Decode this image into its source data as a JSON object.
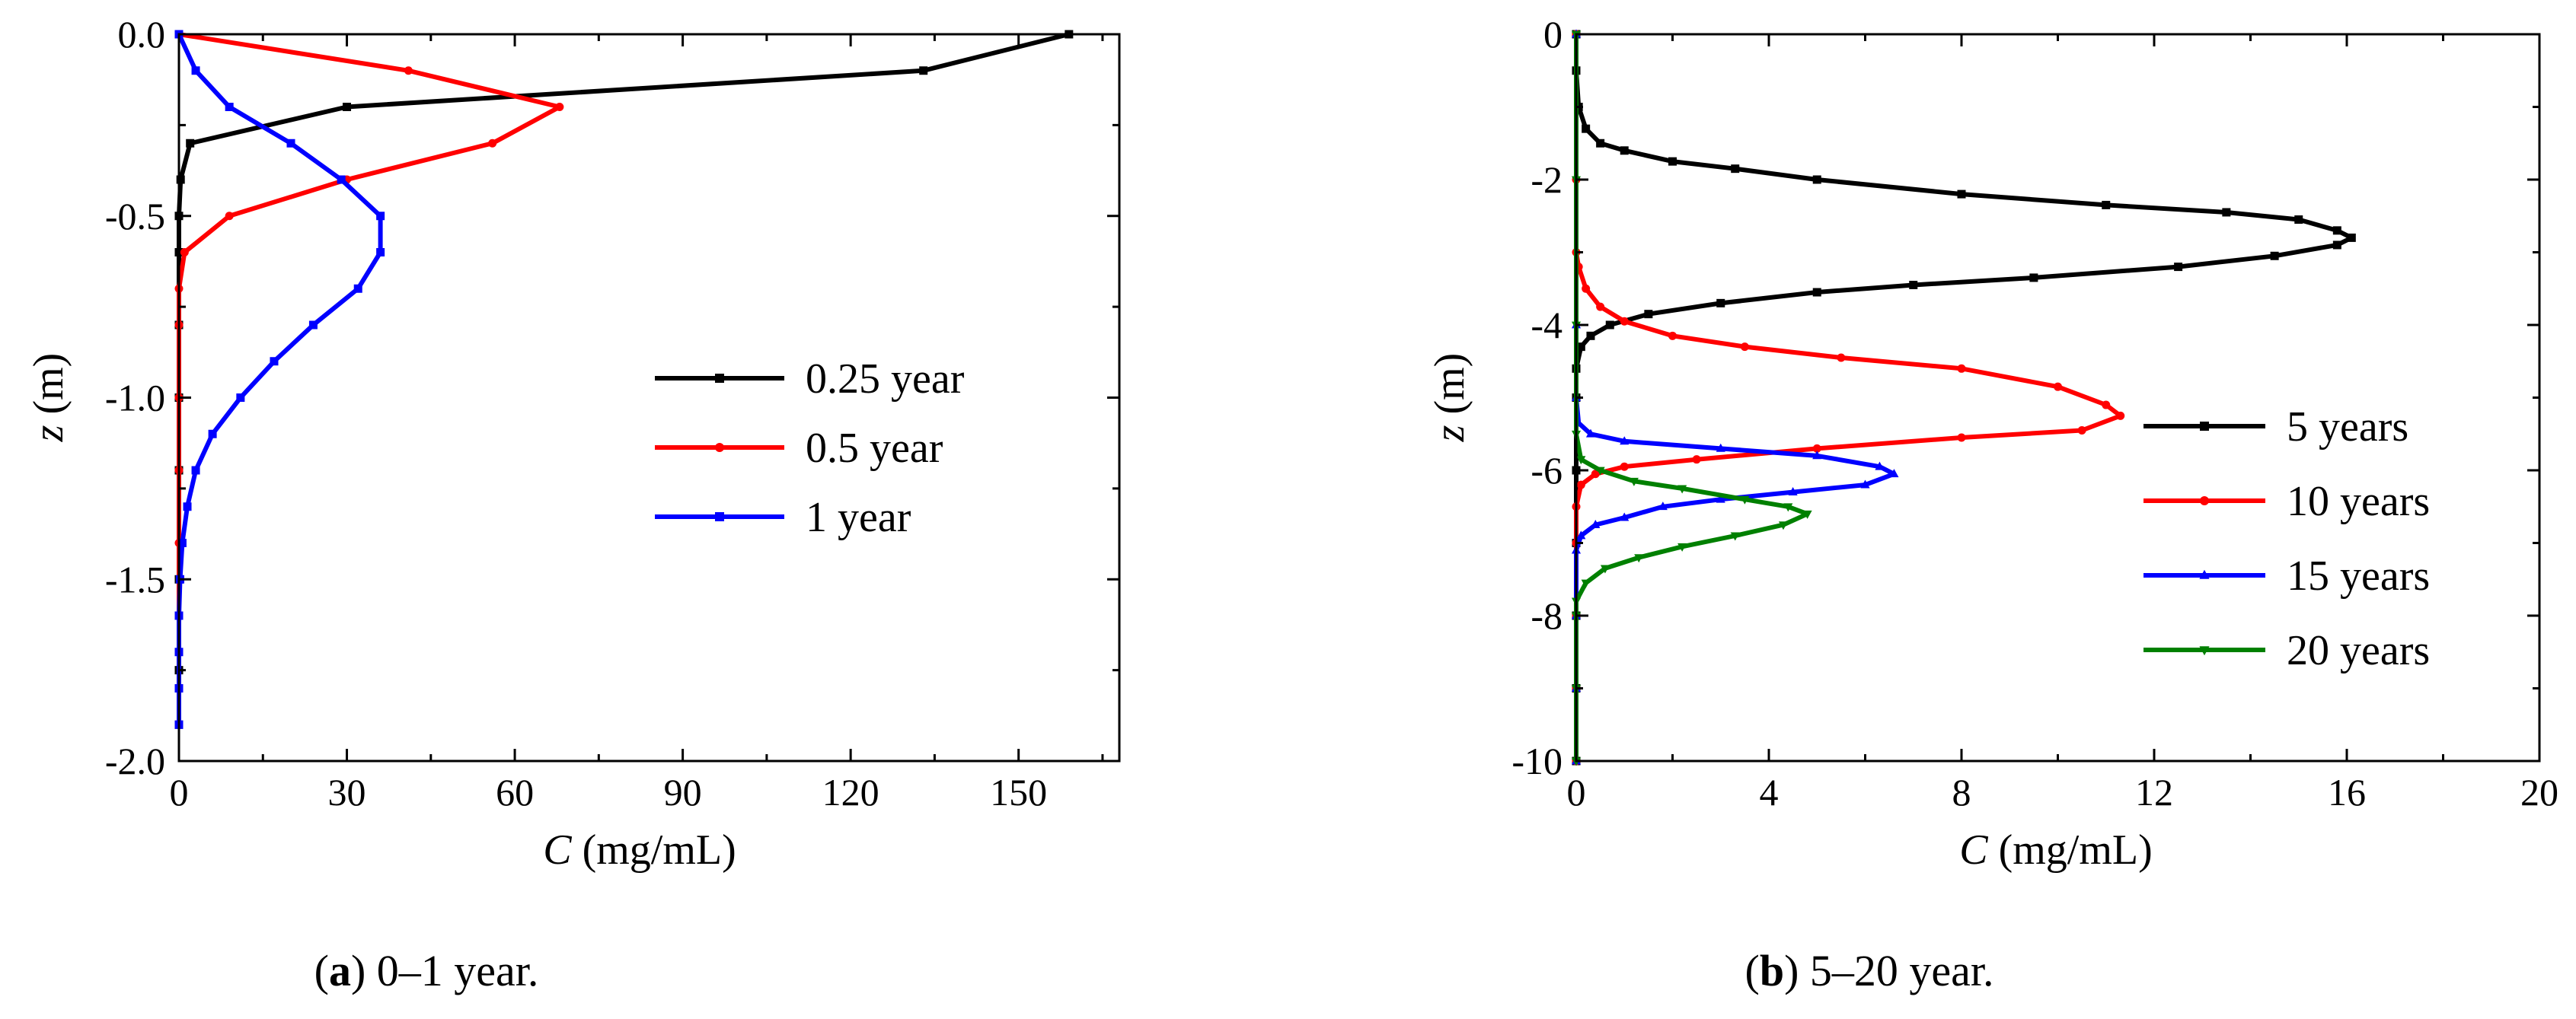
{
  "charts": [
    {
      "id": "a",
      "caption_letter": "a",
      "caption_text": " 0–1 year.",
      "caption_open": "(",
      "caption_close": ")",
      "xlabel_var": "C",
      "xlabel_unit": " (mg/mL)",
      "ylabel_var": "z",
      "ylabel_unit": " (m)",
      "xticks": [
        "0",
        "30",
        "60",
        "90",
        "120",
        "150"
      ],
      "yticks": [
        "0.0",
        "-0.5",
        "-1.0",
        "-1.5",
        "-2.0"
      ]
    },
    {
      "id": "b",
      "caption_letter": "b",
      "caption_text": " 5–20 year.",
      "caption_open": "(",
      "caption_close": ")",
      "xlabel_var": "C",
      "xlabel_unit": " (mg/mL)",
      "ylabel_var": "z",
      "ylabel_unit": " (m)",
      "xticks": [
        "0",
        "4",
        "8",
        "12",
        "16",
        "20"
      ],
      "yticks": [
        "0",
        "-2",
        "-4",
        "-6",
        "-8",
        "-10"
      ]
    }
  ],
  "chart_data": [
    {
      "type": "line",
      "title": "",
      "caption": "(a) 0–1 year.",
      "xlabel": "C (mg/mL)",
      "ylabel": "z (m)",
      "xlim": [
        0,
        168
      ],
      "ylim": [
        -2.0,
        0.0
      ],
      "xticks": [
        0,
        30,
        60,
        90,
        120,
        150
      ],
      "yticks": [
        0.0,
        -0.5,
        -1.0,
        -1.5,
        -2.0
      ],
      "legend_position": "center-right",
      "series": [
        {
          "name": "0.25 year",
          "color": "#000000",
          "marker": "square",
          "points": [
            [
              159,
              0.0
            ],
            [
              133,
              -0.1
            ],
            [
              30,
              -0.2
            ],
            [
              2,
              -0.3
            ],
            [
              0.3,
              -0.4
            ],
            [
              0,
              -0.5
            ],
            [
              0,
              -0.6
            ],
            [
              0,
              -0.8
            ],
            [
              0,
              -1.0
            ],
            [
              0,
              -1.2
            ],
            [
              0,
              -1.5
            ],
            [
              0,
              -1.75
            ],
            [
              0,
              -1.9
            ]
          ]
        },
        {
          "name": "0.5 year",
          "color": "#ff0000",
          "marker": "circle",
          "points": [
            [
              0,
              0.0
            ],
            [
              41,
              -0.1
            ],
            [
              68,
              -0.2
            ],
            [
              56,
              -0.3
            ],
            [
              30,
              -0.4
            ],
            [
              9,
              -0.5
            ],
            [
              1,
              -0.6
            ],
            [
              0,
              -0.7
            ],
            [
              0,
              -0.8
            ],
            [
              0,
              -1.0
            ],
            [
              0,
              -1.2
            ],
            [
              0,
              -1.4
            ],
            [
              0,
              -1.6
            ],
            [
              0,
              -1.9
            ]
          ]
        },
        {
          "name": "1 year",
          "color": "#0000ff",
          "marker": "square",
          "points": [
            [
              0,
              0.0
            ],
            [
              3,
              -0.1
            ],
            [
              9,
              -0.2
            ],
            [
              20,
              -0.3
            ],
            [
              29,
              -0.4
            ],
            [
              36,
              -0.5
            ],
            [
              36,
              -0.6
            ],
            [
              32,
              -0.7
            ],
            [
              24,
              -0.8
            ],
            [
              17,
              -0.9
            ],
            [
              11,
              -1.0
            ],
            [
              6,
              -1.1
            ],
            [
              3,
              -1.2
            ],
            [
              1.5,
              -1.3
            ],
            [
              0.6,
              -1.4
            ],
            [
              0.2,
              -1.5
            ],
            [
              0,
              -1.6
            ],
            [
              0,
              -1.7
            ],
            [
              0,
              -1.8
            ],
            [
              0,
              -1.9
            ]
          ]
        }
      ]
    },
    {
      "type": "line",
      "title": "",
      "caption": "(b) 5–20 year.",
      "xlabel": "C (mg/mL)",
      "ylabel": "z (m)",
      "xlim": [
        0,
        20
      ],
      "ylim": [
        -10,
        0
      ],
      "xticks": [
        0,
        4,
        8,
        12,
        16,
        20
      ],
      "yticks": [
        0,
        -2,
        -4,
        -6,
        -8,
        -10
      ],
      "legend_position": "center-right",
      "series": [
        {
          "name": "5 years",
          "color": "#000000",
          "marker": "square",
          "points": [
            [
              0,
              0
            ],
            [
              0,
              -0.5
            ],
            [
              0.05,
              -1.0
            ],
            [
              0.2,
              -1.3
            ],
            [
              0.5,
              -1.5
            ],
            [
              1.0,
              -1.6
            ],
            [
              2.0,
              -1.75
            ],
            [
              3.3,
              -1.85
            ],
            [
              5.0,
              -2.0
            ],
            [
              8.0,
              -2.2
            ],
            [
              11.0,
              -2.35
            ],
            [
              13.5,
              -2.45
            ],
            [
              15.0,
              -2.55
            ],
            [
              15.8,
              -2.7
            ],
            [
              16.1,
              -2.8
            ],
            [
              15.8,
              -2.9
            ],
            [
              14.5,
              -3.05
            ],
            [
              12.5,
              -3.2
            ],
            [
              9.5,
              -3.35
            ],
            [
              7.0,
              -3.45
            ],
            [
              5.0,
              -3.55
            ],
            [
              3.0,
              -3.7
            ],
            [
              1.5,
              -3.85
            ],
            [
              0.7,
              -4.0
            ],
            [
              0.3,
              -4.15
            ],
            [
              0.1,
              -4.3
            ],
            [
              0,
              -4.6
            ],
            [
              0,
              -5.0
            ],
            [
              0,
              -6.0
            ],
            [
              0,
              -7.0
            ],
            [
              0,
              -8.0
            ],
            [
              0,
              -9.0
            ],
            [
              0,
              -10.0
            ]
          ]
        },
        {
          "name": "10 years",
          "color": "#ff0000",
          "marker": "circle",
          "points": [
            [
              0,
              0
            ],
            [
              0,
              -2
            ],
            [
              0,
              -3.0
            ],
            [
              0.05,
              -3.2
            ],
            [
              0.2,
              -3.5
            ],
            [
              0.5,
              -3.75
            ],
            [
              1.0,
              -3.95
            ],
            [
              2.0,
              -4.15
            ],
            [
              3.5,
              -4.3
            ],
            [
              5.5,
              -4.45
            ],
            [
              8.0,
              -4.6
            ],
            [
              10.0,
              -4.85
            ],
            [
              11.0,
              -5.1
            ],
            [
              11.3,
              -5.25
            ],
            [
              10.5,
              -5.45
            ],
            [
              8.0,
              -5.55
            ],
            [
              5.0,
              -5.7
            ],
            [
              2.5,
              -5.85
            ],
            [
              1.0,
              -5.95
            ],
            [
              0.4,
              -6.05
            ],
            [
              0.1,
              -6.2
            ],
            [
              0,
              -6.5
            ],
            [
              0,
              -7
            ],
            [
              0,
              -8
            ],
            [
              0,
              -9
            ],
            [
              0,
              -10
            ]
          ]
        },
        {
          "name": "15 years",
          "color": "#0000ff",
          "marker": "triangle-up",
          "points": [
            [
              0,
              0
            ],
            [
              0,
              -4
            ],
            [
              0,
              -5.0
            ],
            [
              0.05,
              -5.35
            ],
            [
              0.3,
              -5.5
            ],
            [
              1.0,
              -5.6
            ],
            [
              3.0,
              -5.7
            ],
            [
              5.0,
              -5.8
            ],
            [
              6.3,
              -5.95
            ],
            [
              6.6,
              -6.05
            ],
            [
              6.0,
              -6.2
            ],
            [
              4.5,
              -6.3
            ],
            [
              3.0,
              -6.4
            ],
            [
              1.8,
              -6.5
            ],
            [
              1.0,
              -6.65
            ],
            [
              0.4,
              -6.75
            ],
            [
              0.1,
              -6.9
            ],
            [
              0,
              -7.1
            ],
            [
              0,
              -8
            ],
            [
              0,
              -9
            ],
            [
              0,
              -10
            ]
          ]
        },
        {
          "name": "20 years",
          "color": "#008000",
          "marker": "triangle-down",
          "points": [
            [
              0,
              0
            ],
            [
              0,
              -2
            ],
            [
              0,
              -4
            ],
            [
              0,
              -5.5
            ],
            [
              0.1,
              -5.85
            ],
            [
              0.5,
              -6.0
            ],
            [
              1.2,
              -6.15
            ],
            [
              2.2,
              -6.25
            ],
            [
              3.5,
              -6.4
            ],
            [
              4.4,
              -6.5
            ],
            [
              4.8,
              -6.6
            ],
            [
              4.3,
              -6.75
            ],
            [
              3.3,
              -6.9
            ],
            [
              2.2,
              -7.05
            ],
            [
              1.3,
              -7.2
            ],
            [
              0.6,
              -7.35
            ],
            [
              0.2,
              -7.55
            ],
            [
              0,
              -7.8
            ],
            [
              0,
              -8
            ],
            [
              0,
              -9
            ],
            [
              0,
              -10
            ]
          ]
        }
      ]
    }
  ]
}
